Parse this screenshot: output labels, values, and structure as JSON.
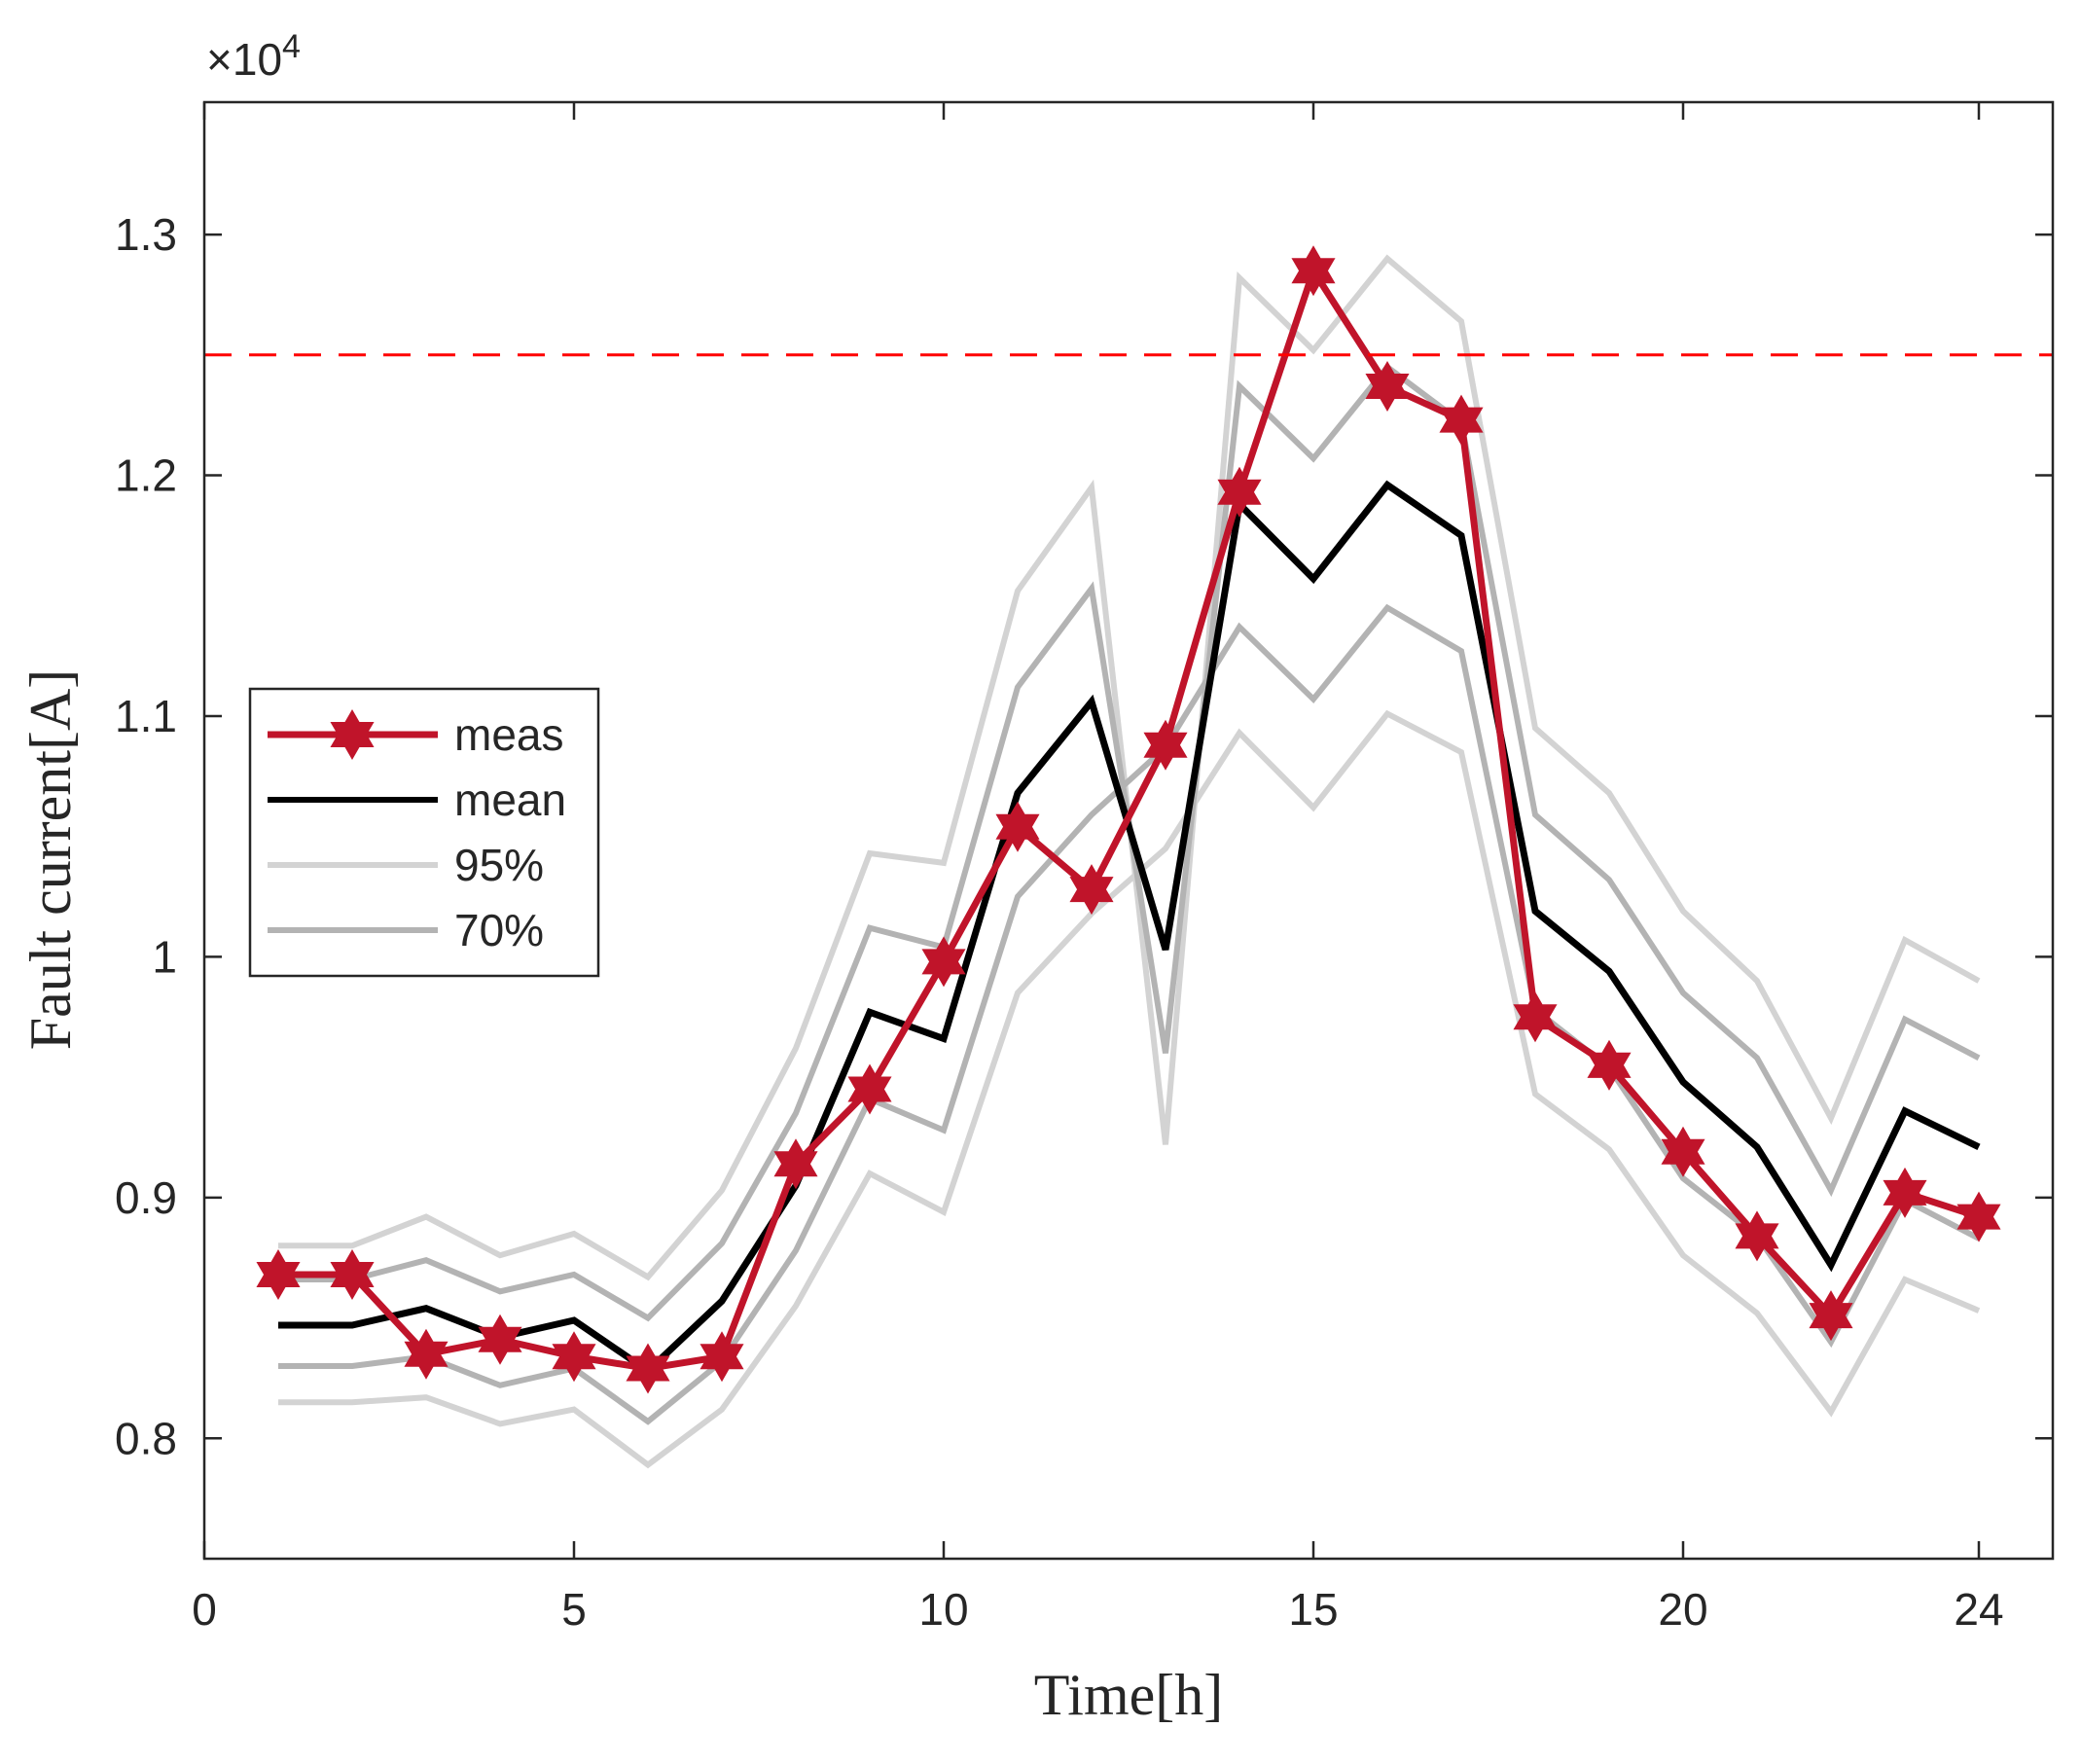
{
  "chart_data": {
    "type": "line",
    "title": "",
    "xlabel": "Time[h]",
    "ylabel": "Fault current[A]",
    "exponent_label": {
      "base": "×10",
      "power": "4"
    },
    "xlim": [
      0,
      25
    ],
    "ylim": [
      0.75,
      1.355
    ],
    "xticks": [
      0,
      5,
      10,
      15,
      20,
      24
    ],
    "xtick_labels": [
      "0",
      "5",
      "10",
      "15",
      "20",
      "24"
    ],
    "yticks": [
      0.8,
      0.9,
      1.0,
      1.1,
      1.2,
      1.3
    ],
    "ytick_labels": [
      "0.8",
      "0.9",
      "1",
      "1.1",
      "1.2",
      "1.3"
    ],
    "grid": false,
    "legend_position": "middle-left",
    "threshold": {
      "y": 1.25,
      "color": "#ff0000",
      "style": "dashed"
    },
    "x": [
      1,
      2,
      3,
      4,
      5,
      6,
      7,
      8,
      9,
      10,
      11,
      12,
      13,
      14,
      15,
      16,
      17,
      18,
      19,
      20,
      21,
      22,
      23,
      24
    ],
    "series": [
      {
        "name": "95%",
        "role": "band",
        "color": "#d3d3d3",
        "width": 6,
        "values": [
          0.88,
          0.88,
          0.892,
          0.876,
          0.885,
          0.867,
          0.903,
          0.962,
          1.043,
          1.039,
          1.152,
          1.195,
          0.922,
          1.282,
          1.252,
          1.29,
          1.264,
          1.095,
          1.068,
          1.019,
          0.99,
          0.933,
          1.007,
          0.99
        ]
      },
      {
        "name": "95%",
        "role": "band",
        "color": "#d3d3d3",
        "width": 6,
        "legend": false,
        "values": [
          0.815,
          0.815,
          0.817,
          0.806,
          0.812,
          0.789,
          0.812,
          0.855,
          0.91,
          0.894,
          0.985,
          1.018,
          1.045,
          1.093,
          1.062,
          1.101,
          1.085,
          0.943,
          0.92,
          0.876,
          0.852,
          0.811,
          0.866,
          0.853
        ]
      },
      {
        "name": "70%",
        "role": "band",
        "color": "#b3b3b3",
        "width": 6,
        "values": [
          0.866,
          0.866,
          0.874,
          0.861,
          0.868,
          0.85,
          0.881,
          0.935,
          1.012,
          1.004,
          1.112,
          1.153,
          0.96,
          1.237,
          1.207,
          1.245,
          1.222,
          1.059,
          1.032,
          0.985,
          0.958,
          0.903,
          0.974,
          0.958
        ]
      },
      {
        "name": "70%",
        "role": "band",
        "color": "#b3b3b3",
        "width": 6,
        "legend": false,
        "values": [
          0.83,
          0.83,
          0.834,
          0.822,
          0.829,
          0.807,
          0.832,
          0.878,
          0.941,
          0.928,
          1.025,
          1.059,
          1.087,
          1.137,
          1.107,
          1.145,
          1.127,
          0.978,
          0.954,
          0.908,
          0.884,
          0.84,
          0.899,
          0.883
        ]
      },
      {
        "name": "mean",
        "role": "mean",
        "color": "#000000",
        "width": 7,
        "values": [
          0.847,
          0.847,
          0.854,
          0.842,
          0.849,
          0.828,
          0.857,
          0.905,
          0.977,
          0.966,
          1.068,
          1.106,
          1.003,
          1.188,
          1.157,
          1.196,
          1.175,
          1.019,
          0.994,
          0.948,
          0.921,
          0.872,
          0.936,
          0.921
        ]
      },
      {
        "name": "meas",
        "role": "meas",
        "color": "#c0142a",
        "width": 7,
        "marker": "hexagram",
        "values": [
          0.868,
          0.868,
          0.835,
          0.841,
          0.834,
          0.829,
          0.834,
          0.914,
          0.945,
          0.998,
          1.054,
          1.028,
          1.088,
          1.193,
          1.285,
          1.237,
          1.223,
          0.975,
          0.955,
          0.919,
          0.884,
          0.851,
          0.902,
          0.892
        ]
      }
    ],
    "legend": [
      {
        "label": "meas",
        "color": "#c0142a",
        "marker": "hexagram"
      },
      {
        "label": "mean",
        "color": "#000000"
      },
      {
        "label": "95%",
        "color": "#d3d3d3"
      },
      {
        "label": "70%",
        "color": "#b3b3b3"
      }
    ]
  }
}
